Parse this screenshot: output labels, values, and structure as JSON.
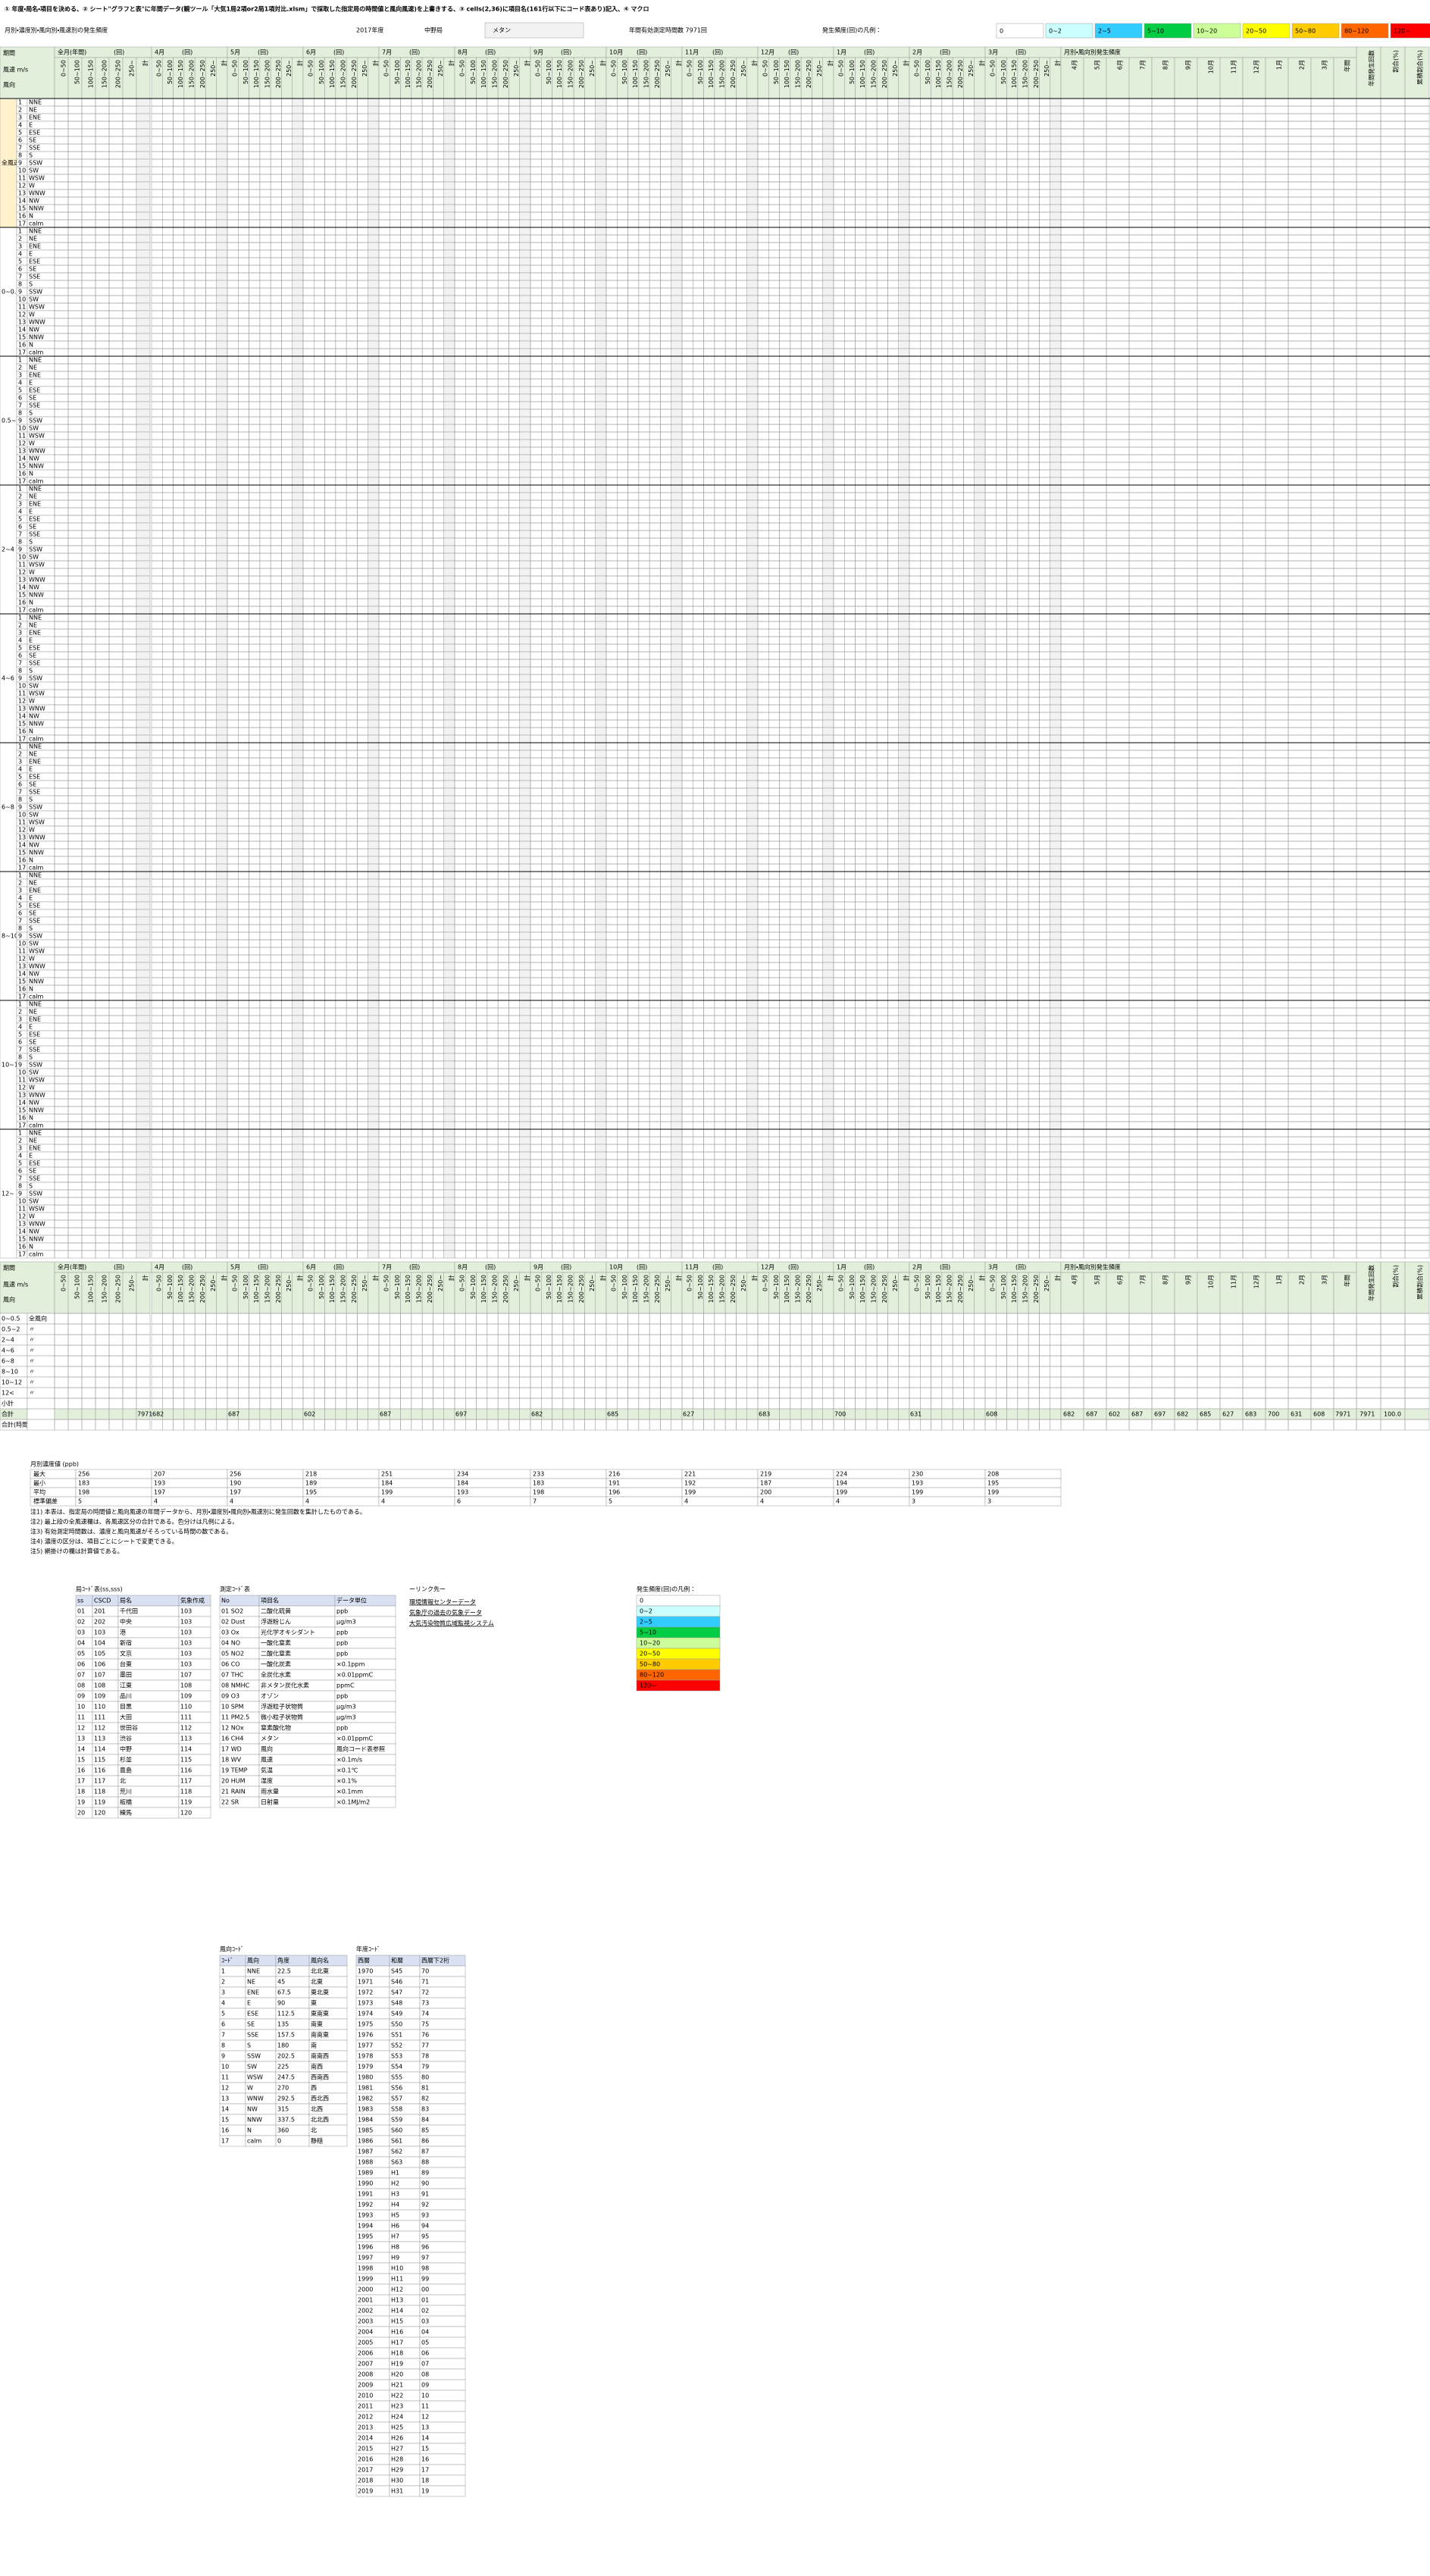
{
  "header": {
    "instruction": "① 年度・局名・項目を決める、② シート\"グラフと表\"に年間データ(観ツール「大気1局2項or2局1項対比.xlsm」で採取した指定局の時間値と風向風速)を上書きする、③ cells(2,36)に項目名(161行以下にコード表あり)記入、④ マクロ",
    "title": "月別・濃度別・風向別・風速別の発生頻度",
    "year": "2017年度",
    "station": "中野局",
    "item": "メタン",
    "valid_hours": "年間有効測定時間数 7971回",
    "legend_label": "発生頻度(回)の凡例：",
    "legend": [
      {
        "label": "0",
        "color": "#ffffff"
      },
      {
        "label": "0~2",
        "color": "#ccffff"
      },
      {
        "label": "2~5",
        "color": "#33ccff"
      },
      {
        "label": "5~10",
        "color": "#00cc44"
      },
      {
        "label": "10~20",
        "color": "#ccff99"
      },
      {
        "label": "20~50",
        "color": "#ffff00"
      },
      {
        "label": "50~80",
        "color": "#ffcc00"
      },
      {
        "label": "80~120",
        "color": "#ff6600"
      },
      {
        "label": "120~",
        "color": "#ff0000"
      }
    ]
  },
  "main": {
    "period": "期間",
    "annual": "全月(年間)",
    "unit": "(回)",
    "speed": "風速 m/s",
    "direction": "風向",
    "freq": "月別・風向別発生頻度",
    "annual_count": "年間発生回数",
    "ratio": "割合(%)",
    "cum": "累積割合(%)",
    "months": [
      "4月",
      "5月",
      "6月",
      "7月",
      "8月",
      "9月",
      "10月",
      "11月",
      "12月",
      "1月",
      "2月",
      "3月"
    ],
    "year_label": "年間",
    "bins": [
      "0~50",
      "50~100",
      "100~150",
      "150~200",
      "200~250",
      "250~",
      "計"
    ],
    "speed_groups": [
      "全風速",
      "0~0.5",
      "0.5~2",
      "2~4",
      "4~6",
      "6~8",
      "8~10",
      "10~12",
      "12~"
    ]
  },
  "summary": {
    "all_dirs": "全風向",
    "ditto": "〃",
    "rows": [
      "0~0.5",
      "0.5~2",
      "2~4",
      "4~6",
      "6~8",
      "8~10",
      "10~12",
      "12<",
      "小計",
      "合計",
      "合計(時間)"
    ],
    "total_label": "合計",
    "year_total": "7971",
    "month_totals": [
      "682",
      "687",
      "602",
      "687",
      "697",
      "682",
      "685",
      "627",
      "683",
      "700",
      "631",
      "608"
    ],
    "ratio_total": "100.0"
  },
  "conc": {
    "title": "月別濃度値 (ppb)",
    "labels": [
      "最大",
      "最小",
      "平均",
      "標準偏差"
    ],
    "rows": [
      [
        "256",
        "207",
        "256",
        "218",
        "251",
        "234",
        "233",
        "216",
        "221",
        "219",
        "224",
        "230",
        "208"
      ],
      [
        "183",
        "193",
        "190",
        "189",
        "184",
        "184",
        "183",
        "191",
        "192",
        "187",
        "194",
        "193",
        "195"
      ],
      [
        "198",
        "197",
        "197",
        "195",
        "199",
        "193",
        "198",
        "196",
        "199",
        "200",
        "199",
        "199",
        "199"
      ],
      [
        "5",
        "4",
        "4",
        "4",
        "4",
        "6",
        "7",
        "5",
        "4",
        "4",
        "4",
        "3",
        "3"
      ]
    ]
  },
  "notes": [
    "注1) 本表は、指定局の時間値と風向風速の年間データから、月別・濃度別・風向別・風速別に発生回数を集計したものである。",
    "注2) 最上段の全風速欄は、各風速区分の合計である。色分けは凡例による。",
    "注3) 有効測定時間数は、濃度と風向風速がそろっている時間の数である。",
    "注4) 濃度の区分は、項目ごとにシートで変更できる。",
    "注5) 網掛けの欄は計算値である。"
  ],
  "stations": {
    "title": "局ｺｰﾄﾞ表(ss,sss)",
    "head": [
      "ss",
      "CSCD",
      "局名",
      "気象作成"
    ],
    "rows": [
      [
        "01",
        "201",
        "千代田",
        "103"
      ],
      [
        "02",
        "202",
        "中央",
        "103"
      ],
      [
        "03",
        "103",
        "港",
        "103"
      ],
      [
        "04",
        "104",
        "新宿",
        "103"
      ],
      [
        "05",
        "105",
        "文京",
        "103"
      ],
      [
        "06",
        "106",
        "台東",
        "103"
      ],
      [
        "07",
        "107",
        "墨田",
        "107"
      ],
      [
        "08",
        "108",
        "江東",
        "108"
      ],
      [
        "09",
        "109",
        "品川",
        "109"
      ],
      [
        "10",
        "110",
        "目黒",
        "110"
      ],
      [
        "11",
        "111",
        "大田",
        "111"
      ],
      [
        "12",
        "112",
        "世田谷",
        "112"
      ],
      [
        "13",
        "113",
        "渋谷",
        "113"
      ],
      [
        "14",
        "114",
        "中野",
        "114"
      ],
      [
        "15",
        "115",
        "杉並",
        "115"
      ],
      [
        "16",
        "116",
        "豊島",
        "116"
      ],
      [
        "17",
        "117",
        "北",
        "117"
      ],
      [
        "18",
        "118",
        "荒川",
        "118"
      ],
      [
        "19",
        "119",
        "板橋",
        "119"
      ],
      [
        "20",
        "120",
        "練馬",
        "120"
      ]
    ]
  },
  "items": {
    "title": "測定ｺｰﾄﾞ表",
    "head": [
      "No",
      "項目名",
      "データ単位"
    ],
    "rows": [
      [
        "01 SO2",
        "二酸化硫黄",
        "ppb"
      ],
      [
        "02 Dust",
        "浮遊粉じん",
        "μg/m3"
      ],
      [
        "03 Ox",
        "光化学オキシダント",
        "ppb"
      ],
      [
        "04 NO",
        "一酸化窒素",
        "ppb"
      ],
      [
        "05 NO2",
        "二酸化窒素",
        "ppb"
      ],
      [
        "06 CO",
        "一酸化炭素",
        "×0.1ppm"
      ],
      [
        "07 THC",
        "全炭化水素",
        "×0.01ppmC"
      ],
      [
        "08 NMHC",
        "非メタン炭化水素",
        "ppmC"
      ],
      [
        "09 O3",
        "オゾン",
        "ppb"
      ],
      [
        "10 SPM",
        "浮遊粒子状物質",
        "μg/m3"
      ],
      [
        "11 PM2.5",
        "微小粒子状物質",
        "μg/m3"
      ],
      [
        "12 NOx",
        "窒素酸化物",
        "ppb"
      ],
      [
        "16 CH4",
        "メタン",
        "×0.01ppmC"
      ],
      [
        "17 WD",
        "風向",
        "風向コード表参照"
      ],
      [
        "18 WV",
        "風速",
        "×0.1m/s"
      ],
      [
        "19 TEMP",
        "気温",
        "×0.1℃"
      ],
      [
        "20 HUM",
        "湿度",
        "×0.1%"
      ],
      [
        "21 RAIN",
        "雨水量",
        "×0.1mm"
      ],
      [
        "22 SR",
        "日射量",
        "×0.1MJ/m2"
      ]
    ]
  },
  "links": {
    "title": "ーリンク先ー",
    "items": [
      "環境情報センターデータ",
      "気象庁の過去の気象データ",
      "大気汚染物質広域監視システム"
    ]
  },
  "wind_codes": {
    "title": "風向ｺｰﾄﾞ",
    "head": [
      "ｺｰﾄﾞ",
      "風向",
      "角度",
      "風向名"
    ],
    "rows": [
      [
        "1",
        "NNE",
        "22.5",
        "北北東"
      ],
      [
        "2",
        "NE",
        "45",
        "北東"
      ],
      [
        "3",
        "ENE",
        "67.5",
        "東北東"
      ],
      [
        "4",
        "E",
        "90",
        "東"
      ],
      [
        "5",
        "ESE",
        "112.5",
        "東南東"
      ],
      [
        "6",
        "SE",
        "135",
        "南東"
      ],
      [
        "7",
        "SSE",
        "157.5",
        "南南東"
      ],
      [
        "8",
        "S",
        "180",
        "南"
      ],
      [
        "9",
        "SSW",
        "202.5",
        "南南西"
      ],
      [
        "10",
        "SW",
        "225",
        "南西"
      ],
      [
        "11",
        "WSW",
        "247.5",
        "西南西"
      ],
      [
        "12",
        "W",
        "270",
        "西"
      ],
      [
        "13",
        "WNW",
        "292.5",
        "西北西"
      ],
      [
        "14",
        "NW",
        "315",
        "北西"
      ],
      [
        "15",
        "NNW",
        "337.5",
        "北北西"
      ],
      [
        "16",
        "N",
        "360",
        "北"
      ],
      [
        "17",
        "calm",
        "0",
        "静穏"
      ]
    ]
  },
  "years": {
    "title": "年度ｺｰﾄﾞ",
    "head": [
      "西暦",
      "和暦",
      "西暦下2桁"
    ],
    "rows": [
      [
        "1970",
        "S45",
        "70"
      ],
      [
        "1971",
        "S46",
        "71"
      ],
      [
        "1972",
        "S47",
        "72"
      ],
      [
        "1973",
        "S48",
        "73"
      ],
      [
        "1974",
        "S49",
        "74"
      ],
      [
        "1975",
        "S50",
        "75"
      ],
      [
        "1976",
        "S51",
        "76"
      ],
      [
        "1977",
        "S52",
        "77"
      ],
      [
        "1978",
        "S53",
        "78"
      ],
      [
        "1979",
        "S54",
        "79"
      ],
      [
        "1980",
        "S55",
        "80"
      ],
      [
        "1981",
        "S56",
        "81"
      ],
      [
        "1982",
        "S57",
        "82"
      ],
      [
        "1983",
        "S58",
        "83"
      ],
      [
        "1984",
        "S59",
        "84"
      ],
      [
        "1985",
        "S60",
        "85"
      ],
      [
        "1986",
        "S61",
        "86"
      ],
      [
        "1987",
        "S62",
        "87"
      ],
      [
        "1988",
        "S63",
        "88"
      ],
      [
        "1989",
        "H1",
        "89"
      ],
      [
        "1990",
        "H2",
        "90"
      ],
      [
        "1991",
        "H3",
        "91"
      ],
      [
        "1992",
        "H4",
        "92"
      ],
      [
        "1993",
        "H5",
        "93"
      ],
      [
        "1994",
        "H6",
        "94"
      ],
      [
        "1995",
        "H7",
        "95"
      ],
      [
        "1996",
        "H8",
        "96"
      ],
      [
        "1997",
        "H9",
        "97"
      ],
      [
        "1998",
        "H10",
        "98"
      ],
      [
        "1999",
        "H11",
        "99"
      ],
      [
        "2000",
        "H12",
        "00"
      ],
      [
        "2001",
        "H13",
        "01"
      ],
      [
        "2002",
        "H14",
        "02"
      ],
      [
        "2003",
        "H15",
        "03"
      ],
      [
        "2004",
        "H16",
        "04"
      ],
      [
        "2005",
        "H17",
        "05"
      ],
      [
        "2006",
        "H18",
        "06"
      ],
      [
        "2007",
        "H19",
        "07"
      ],
      [
        "2008",
        "H20",
        "08"
      ],
      [
        "2009",
        "H21",
        "09"
      ],
      [
        "2010",
        "H22",
        "10"
      ],
      [
        "2011",
        "H23",
        "11"
      ],
      [
        "2012",
        "H24",
        "12"
      ],
      [
        "2013",
        "H25",
        "13"
      ],
      [
        "2014",
        "H26",
        "14"
      ],
      [
        "2015",
        "H27",
        "15"
      ],
      [
        "2016",
        "H28",
        "16"
      ],
      [
        "2017",
        "H29",
        "17"
      ],
      [
        "2018",
        "H30",
        "18"
      ],
      [
        "2019",
        "H31",
        "19"
      ]
    ]
  }
}
